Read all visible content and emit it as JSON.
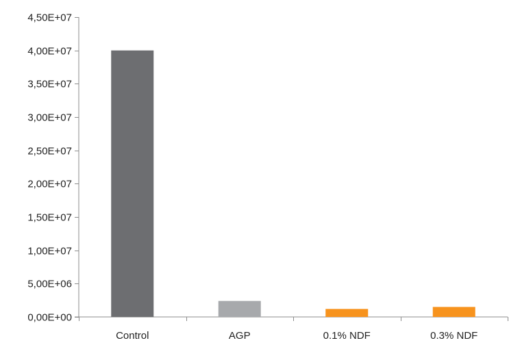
{
  "chart_data": {
    "type": "bar",
    "title": "",
    "xlabel": "",
    "ylabel": "",
    "categories": [
      "Control",
      "AGP",
      "0.1% NDF",
      "0.3% NDF"
    ],
    "values": [
      40000000,
      2400000,
      1200000,
      1500000
    ],
    "bar_colors": [
      "#6d6e71",
      "#a7a9ac",
      "#f7931e",
      "#f7931e"
    ],
    "ylim": [
      0,
      45000000
    ],
    "yticks": [
      {
        "value": 0,
        "label": "0,00E+00"
      },
      {
        "value": 5000000,
        "label": "5,00E+06"
      },
      {
        "value": 10000000,
        "label": "1,00E+07"
      },
      {
        "value": 15000000,
        "label": "1,50E+07"
      },
      {
        "value": 20000000,
        "label": "2,00E+07"
      },
      {
        "value": 25000000,
        "label": "2,50E+07"
      },
      {
        "value": 30000000,
        "label": "3,00E+07"
      },
      {
        "value": 35000000,
        "label": "3,50E+07"
      },
      {
        "value": 40000000,
        "label": "4,00E+07"
      },
      {
        "value": 45000000,
        "label": "4,50E+07"
      }
    ],
    "grid": false,
    "legend": "none"
  }
}
